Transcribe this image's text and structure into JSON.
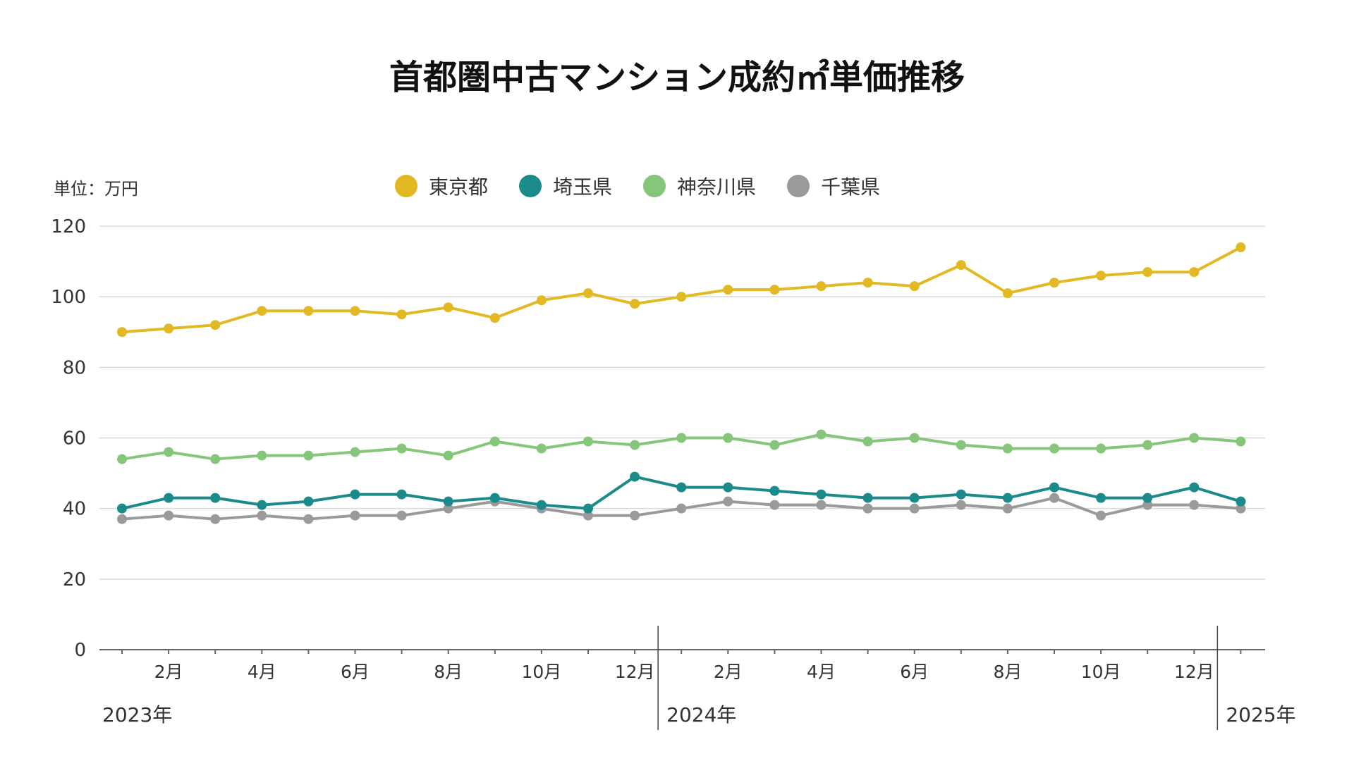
{
  "chart_data": {
    "type": "line",
    "title": "首都圏中古マンション成約㎡単価推移",
    "unit_label": "単位：万円",
    "ylim": [
      0,
      120
    ],
    "yticks": [
      "0",
      "20",
      "40",
      "60",
      "80",
      "100",
      "120"
    ],
    "grid": true,
    "legend_position": "top",
    "x_tick_labels": [
      "2月",
      "4月",
      "6月",
      "8月",
      "10月",
      "12月",
      "2月",
      "4月",
      "6月",
      "8月",
      "10月",
      "12月"
    ],
    "year_labels": [
      "2023年",
      "2024年",
      "2025年"
    ],
    "x": [
      "2023-01",
      "2023-02",
      "2023-03",
      "2023-04",
      "2023-05",
      "2023-06",
      "2023-07",
      "2023-08",
      "2023-09",
      "2023-10",
      "2023-11",
      "2023-12",
      "2024-01",
      "2024-02",
      "2024-03",
      "2024-04",
      "2024-05",
      "2024-06",
      "2024-07",
      "2024-08",
      "2024-09",
      "2024-10",
      "2024-11",
      "2024-12",
      "2025-01"
    ],
    "series": [
      {
        "name": "東京都",
        "color": "#e2b923",
        "values": [
          90,
          91,
          92,
          96,
          96,
          96,
          95,
          97,
          94,
          99,
          101,
          98,
          100,
          102,
          102,
          103,
          104,
          103,
          109,
          101,
          104,
          106,
          107,
          107,
          114
        ]
      },
      {
        "name": "埼玉県",
        "color": "#1a8a8a",
        "values": [
          40,
          43,
          43,
          41,
          42,
          44,
          44,
          42,
          43,
          41,
          40,
          49,
          46,
          46,
          45,
          44,
          43,
          43,
          44,
          43,
          46,
          43,
          43,
          46,
          42
        ]
      },
      {
        "name": "神奈川県",
        "color": "#86c67a",
        "values": [
          54,
          56,
          54,
          55,
          55,
          56,
          57,
          55,
          59,
          57,
          59,
          58,
          60,
          60,
          58,
          61,
          59,
          60,
          58,
          57,
          57,
          57,
          58,
          60,
          59
        ]
      },
      {
        "name": "千葉県",
        "color": "#9a9a9a",
        "values": [
          37,
          38,
          37,
          38,
          37,
          38,
          38,
          40,
          42,
          40,
          38,
          38,
          40,
          42,
          41,
          41,
          40,
          40,
          41,
          40,
          43,
          38,
          41,
          41,
          40
        ]
      }
    ]
  }
}
